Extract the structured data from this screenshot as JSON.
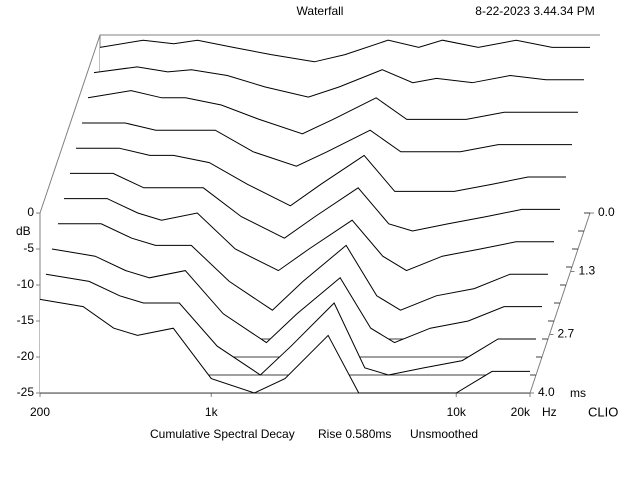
{
  "chart_data": {
    "type": "waterfall",
    "title": "Waterfall",
    "timestamp": "8-22-2023 3.44.34 PM",
    "y_label": "dB",
    "x_unit": "Hz",
    "t_unit": "ms",
    "brand": "CLIO",
    "footer": [
      "Cumulative Spectral Decay",
      "Rise 0.580ms",
      "Unsmoothed"
    ],
    "x": [
      200,
      300,
      400,
      500,
      700,
      1000,
      1500,
      2000,
      3000,
      4000,
      5000,
      7000,
      10000,
      14000,
      20000
    ],
    "xlim": [
      200,
      20000
    ],
    "log_x": true,
    "xticks": [
      200,
      {
        "value": 1000,
        "label": "1k"
      },
      {
        "value": 10000,
        "label": "10k"
      },
      {
        "value": 20000,
        "label": "20k"
      }
    ],
    "ylim": [
      -25,
      0
    ],
    "yticks": [
      0,
      -5,
      -10,
      -15,
      -20,
      -25
    ],
    "tlim": [
      0,
      4
    ],
    "tticks": [
      {
        "value": 0,
        "label": "0.0"
      },
      1.3,
      2.7,
      {
        "value": 4,
        "label": "4.0"
      }
    ],
    "series": [
      {
        "time": 0,
        "values": [
          -2,
          -1,
          -1.5,
          -1,
          -2,
          -3,
          -4,
          -3,
          -1,
          -2,
          -1,
          -2,
          -1,
          -2,
          -2
        ]
      },
      {
        "time": 0.4,
        "values": [
          -3,
          -2.2,
          -2.9,
          -2.6,
          -3.4,
          -5,
          -6.4,
          -5,
          -2.6,
          -4.4,
          -3.8,
          -4.4,
          -3.4,
          -4,
          -4
        ]
      },
      {
        "time": 0.8,
        "values": [
          -4,
          -3,
          -4,
          -4,
          -5,
          -7,
          -9,
          -7,
          -4,
          -7,
          -7,
          -7,
          -6,
          -6,
          -6
        ]
      },
      {
        "time": 1.2,
        "values": [
          -5,
          -5,
          -6,
          -6,
          -6,
          -9,
          -11,
          -9,
          -6,
          -9,
          -9,
          -9,
          -8,
          -8,
          -8
        ]
      },
      {
        "time": 1.6,
        "values": [
          -6,
          -6,
          -7,
          -7,
          -8,
          -11,
          -14,
          -11,
          -7,
          -12,
          -12,
          -12,
          -11,
          -10,
          -10
        ]
      },
      {
        "time": 2.0,
        "values": [
          -7,
          -7,
          -9,
          -9,
          -9,
          -13,
          -16,
          -13,
          -9,
          -14,
          -15,
          -14,
          -13,
          -12,
          -12
        ]
      },
      {
        "time": 2.4,
        "values": [
          -8,
          -8,
          -10,
          -11,
          -10,
          -15,
          -18,
          -15,
          -11,
          -16,
          -18,
          -16,
          -15,
          -14,
          -14
        ]
      },
      {
        "time": 2.8,
        "values": [
          -9,
          -9,
          -11,
          -12,
          -12,
          -17,
          -21,
          -17,
          -12,
          -19,
          -21,
          -19,
          -18,
          -16,
          -16
        ]
      },
      {
        "time": 3.2,
        "values": [
          -10,
          -11,
          -13,
          -14,
          -13,
          -19,
          -23,
          -19,
          -14,
          -21,
          -23,
          -21,
          -20,
          -18,
          -18
        ]
      },
      {
        "time": 3.6,
        "values": [
          -11,
          -12,
          -14,
          -15,
          -15,
          -21,
          -25,
          -21,
          -15,
          -24,
          -25,
          -24,
          -23,
          -20,
          -20
        ]
      },
      {
        "time": 4.0,
        "values": [
          -12,
          -13,
          -16,
          -17,
          -16,
          -23,
          -25,
          -23,
          -17,
          -25,
          -25,
          -25,
          -25,
          -22,
          -22
        ]
      }
    ]
  }
}
